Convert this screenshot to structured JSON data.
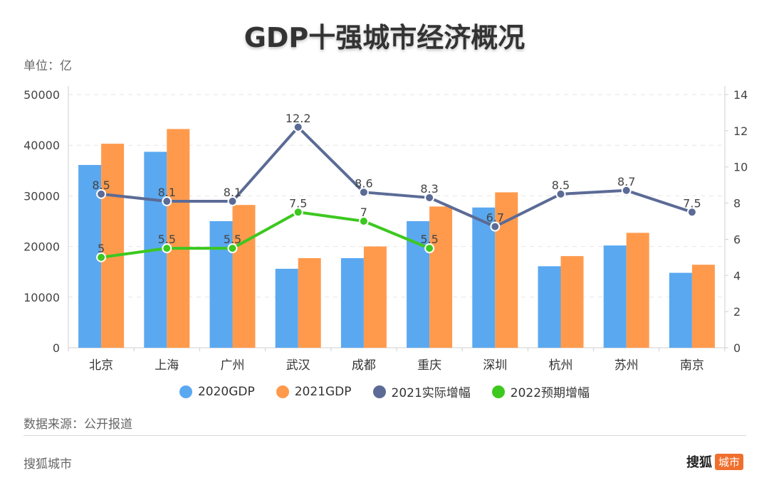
{
  "title": "GDP十强城市经济概况",
  "unit_label": "单位：亿",
  "source_label": "数据来源：公开报道",
  "footer_left": "搜狐城市",
  "footer_brand": "搜狐",
  "footer_badge": "城市",
  "colors": {
    "gdp2020": "#5aa8f0",
    "gdp2021": "#ff9a4c",
    "growth2021": "#5b6b96",
    "growth2022": "#3cc81f"
  },
  "chart_data": {
    "type": "bar",
    "categories": [
      "北京",
      "上海",
      "广州",
      "武汉",
      "成都",
      "重庆",
      "深圳",
      "杭州",
      "苏州",
      "南京"
    ],
    "left_axis": {
      "min": 0,
      "max": 50000,
      "ticks": [
        0,
        10000,
        20000,
        30000,
        40000,
        50000
      ]
    },
    "right_axis": {
      "min": 0,
      "max": 14,
      "ticks": [
        0,
        2,
        4,
        6,
        8,
        10,
        12,
        14
      ]
    },
    "series": [
      {
        "name": "2020GDP",
        "type": "bar",
        "axis": "left",
        "values": [
          36100,
          38700,
          25000,
          15600,
          17700,
          25000,
          27700,
          16100,
          20200,
          14800
        ]
      },
      {
        "name": "2021GDP",
        "type": "bar",
        "axis": "left",
        "values": [
          40300,
          43200,
          28200,
          17700,
          20000,
          27900,
          30700,
          18100,
          22700,
          16400
        ]
      },
      {
        "name": "2021实际增幅",
        "type": "line",
        "axis": "right",
        "values": [
          8.5,
          8.1,
          8.1,
          12.2,
          8.6,
          8.3,
          6.7,
          8.5,
          8.7,
          7.5
        ],
        "labels": [
          "8.5",
          "8.1",
          "8.1",
          "12.2",
          "8.6",
          "8.3",
          "6.7",
          "8.5",
          "8.7",
          "7.5"
        ]
      },
      {
        "name": "2022预期增幅",
        "type": "line",
        "axis": "right",
        "values": [
          5,
          5.5,
          5.5,
          7.5,
          7,
          5.5,
          null,
          null,
          null,
          null
        ],
        "labels": [
          "5",
          "5.5",
          "5.5",
          "7.5",
          "7",
          "5.5",
          "",
          "",
          "",
          ""
        ]
      }
    ],
    "legend": [
      "2020GDP",
      "2021GDP",
      "2021实际增幅",
      "2022预期增幅"
    ]
  }
}
